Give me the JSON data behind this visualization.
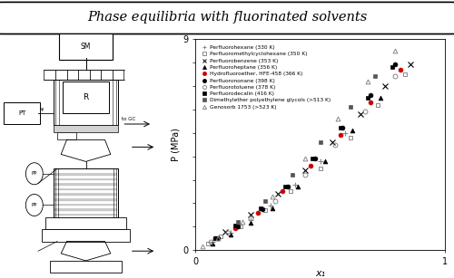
{
  "title": "Phase equilibria with fluorinated solvents",
  "xlabel": "x₁",
  "ylabel": "P (MPa)",
  "xlim": [
    0,
    1
  ],
  "ylim": [
    0,
    9
  ],
  "yticks": [
    0,
    1,
    2,
    3,
    4,
    5,
    6,
    7,
    8,
    9
  ],
  "ytick_labels": [
    "0",
    "",
    "",
    "",
    "",
    "",
    "",
    "",
    "",
    "9"
  ],
  "xticks": [
    0,
    1
  ],
  "xtick_labels": [
    "0",
    "1"
  ],
  "legend_entries": [
    {
      "label": "Perfluorohexane (330 K)",
      "marker": "+",
      "color": "#888888",
      "ms": 4,
      "filled": true
    },
    {
      "label": "Perfluoromethylcyclohexane (350 K)",
      "marker": "s",
      "color": "#888888",
      "ms": 3.5,
      "filled": false
    },
    {
      "label": "Perfluorobenzene (353 K)",
      "marker": "x",
      "color": "#000000",
      "ms": 4,
      "filled": true
    },
    {
      "label": "Perfluoroheptane (356 K)",
      "marker": "^",
      "color": "#000000",
      "ms": 3.5,
      "filled": true
    },
    {
      "label": "Hydrofluoroether, HFE-458 (366 K)",
      "marker": "o",
      "color": "#cc0000",
      "ms": 3.5,
      "filled": true
    },
    {
      "label": "Perfluorononane (398 K)",
      "marker": "o",
      "color": "#000000",
      "ms": 3.5,
      "filled": true
    },
    {
      "label": "Perfluorotoluene (378 K)",
      "marker": "o",
      "color": "#888888",
      "ms": 3.5,
      "filled": false
    },
    {
      "label": "Perfluorodecalin (416 K)",
      "marker": "s",
      "color": "#000000",
      "ms": 3.5,
      "filled": true
    },
    {
      "label": "Dimethylether polyethylene glycols (>513 K)",
      "marker": "s",
      "color": "#555555",
      "ms": 3.5,
      "filled": true
    },
    {
      "label": "Genosorb 1753 (>523 K)",
      "marker": "^",
      "color": "#888888",
      "ms": 3.5,
      "filled": false
    }
  ],
  "series": [
    {
      "name": "Perfluorohexane (330 K)",
      "marker": "+",
      "color": "#888888",
      "ms": 4,
      "filled": true,
      "x": [
        0.07,
        0.14,
        0.22,
        0.3,
        0.4,
        0.5,
        0.6
      ],
      "y": [
        0.35,
        0.75,
        1.3,
        1.9,
        2.8,
        3.8,
        5.0
      ]
    },
    {
      "name": "Perfluoromethylcyclohexane (350 K)",
      "marker": "s",
      "color": "#888888",
      "ms": 3.5,
      "filled": false,
      "x": [
        0.05,
        0.1,
        0.18,
        0.28,
        0.38,
        0.5,
        0.62,
        0.73,
        0.84
      ],
      "y": [
        0.3,
        0.6,
        1.0,
        1.7,
        2.5,
        3.5,
        4.8,
        6.2,
        7.5
      ]
    },
    {
      "name": "Perfluorobenzene (353 K)",
      "marker": "x",
      "color": "#000000",
      "ms": 4,
      "filled": true,
      "x": [
        0.12,
        0.22,
        0.33,
        0.44,
        0.55,
        0.66,
        0.76,
        0.86
      ],
      "y": [
        0.8,
        1.5,
        2.4,
        3.4,
        4.6,
        5.8,
        7.0,
        7.9
      ]
    },
    {
      "name": "Perfluoroheptane (356 K)",
      "marker": "^",
      "color": "#000000",
      "ms": 3.5,
      "filled": true,
      "x": [
        0.07,
        0.14,
        0.22,
        0.31,
        0.41,
        0.52,
        0.63,
        0.74
      ],
      "y": [
        0.3,
        0.65,
        1.15,
        1.8,
        2.7,
        3.8,
        5.1,
        6.5
      ]
    },
    {
      "name": "Hydrofluoroether, HFE-458 (366 K)",
      "marker": "o",
      "color": "#cc0000",
      "ms": 3.5,
      "filled": true,
      "x": [
        0.08,
        0.16,
        0.25,
        0.35,
        0.46,
        0.58,
        0.7,
        0.82
      ],
      "y": [
        0.5,
        0.95,
        1.6,
        2.5,
        3.6,
        4.9,
        6.3,
        7.7
      ]
    },
    {
      "name": "Perfluorononane (398 K)",
      "marker": "o",
      "color": "#000000",
      "ms": 3.5,
      "filled": true,
      "x": [
        0.09,
        0.17,
        0.27,
        0.37,
        0.48,
        0.59,
        0.7,
        0.8
      ],
      "y": [
        0.5,
        1.0,
        1.75,
        2.7,
        3.9,
        5.2,
        6.6,
        7.9
      ]
    },
    {
      "name": "Perfluorotoluene (378 K)",
      "marker": "o",
      "color": "#888888",
      "ms": 3.5,
      "filled": false,
      "x": [
        0.06,
        0.13,
        0.22,
        0.32,
        0.44,
        0.56,
        0.68,
        0.8
      ],
      "y": [
        0.35,
        0.75,
        1.35,
        2.1,
        3.2,
        4.5,
        5.9,
        7.4
      ]
    },
    {
      "name": "Perfluorodecalin (416 K)",
      "marker": "s",
      "color": "#000000",
      "ms": 3.5,
      "filled": true,
      "x": [
        0.08,
        0.16,
        0.26,
        0.36,
        0.47,
        0.58,
        0.69,
        0.79
      ],
      "y": [
        0.5,
        1.05,
        1.8,
        2.7,
        3.9,
        5.2,
        6.5,
        7.8
      ]
    },
    {
      "name": "Dimethylether polyethylene glycols (>513 K)",
      "marker": "s",
      "color": "#555555",
      "ms": 3.5,
      "filled": true,
      "x": [
        0.17,
        0.28,
        0.39,
        0.5,
        0.62,
        0.72
      ],
      "y": [
        1.2,
        2.1,
        3.2,
        4.6,
        6.1,
        7.4
      ]
    },
    {
      "name": "Genosorb 1753 (>523 K)",
      "marker": "^",
      "color": "#888888",
      "ms": 3.5,
      "filled": false,
      "x": [
        0.03,
        0.09,
        0.19,
        0.31,
        0.44,
        0.57,
        0.69,
        0.8
      ],
      "y": [
        0.15,
        0.5,
        1.2,
        2.3,
        3.9,
        5.6,
        7.2,
        8.5
      ]
    }
  ],
  "bg_color": "#ffffff"
}
